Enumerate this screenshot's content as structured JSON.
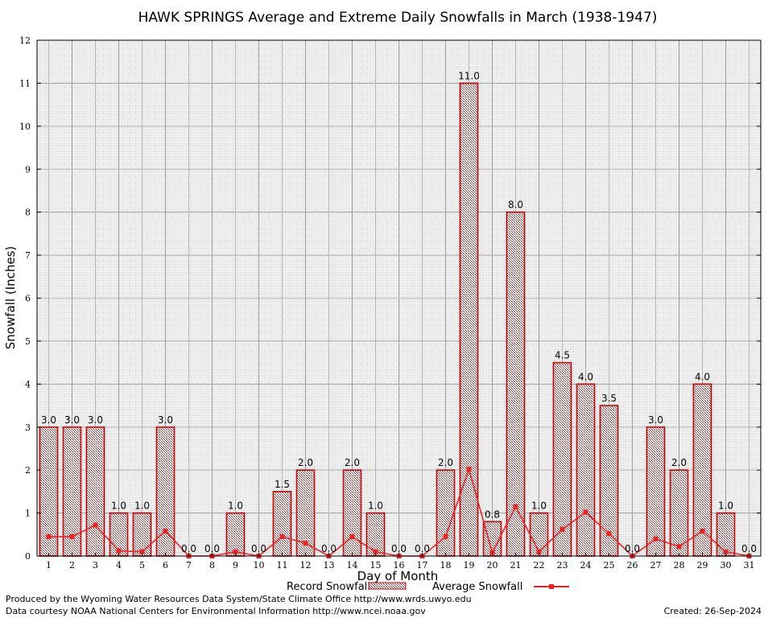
{
  "chart_data": {
    "type": "bar",
    "title": "HAWK SPRINGS Average and Extreme Daily Snowfalls in March (1938-1947)",
    "xlabel": "Day of Month",
    "ylabel": "Snowfall (Inches)",
    "ylim": [
      0,
      12
    ],
    "yticks": [
      0,
      1,
      2,
      3,
      4,
      5,
      6,
      7,
      8,
      9,
      10,
      11,
      12
    ],
    "grid": true,
    "legend_position": "bottom",
    "categories": [
      "1",
      "2",
      "3",
      "4",
      "5",
      "6",
      "7",
      "8",
      "9",
      "10",
      "11",
      "12",
      "13",
      "14",
      "15",
      "16",
      "17",
      "18",
      "19",
      "20",
      "21",
      "22",
      "23",
      "24",
      "25",
      "26",
      "27",
      "28",
      "29",
      "30",
      "31"
    ],
    "series": [
      {
        "name": "Record Snowfall",
        "kind": "bar",
        "color": "#cc0000",
        "fill": "#d8c8c0",
        "values": [
          3.0,
          3.0,
          3.0,
          1.0,
          1.0,
          3.0,
          0.0,
          0.0,
          1.0,
          0.0,
          1.5,
          2.0,
          0.0,
          2.0,
          1.0,
          0.0,
          0.0,
          2.0,
          11.0,
          0.8,
          8.0,
          1.0,
          4.5,
          4.0,
          3.5,
          0.0,
          3.0,
          2.0,
          4.0,
          1.0,
          0.0
        ],
        "labels": [
          "3.0",
          "3.0",
          "3.0",
          "1.0",
          "1.0",
          "3.0",
          "0.0",
          "0.0",
          "1.0",
          "0.0",
          "1.5",
          "2.0",
          "0.0",
          "2.0",
          "1.0",
          "0.0",
          "0.0",
          "2.0",
          "11.0",
          "0.8",
          "8.0",
          "1.0",
          "4.5",
          "4.0",
          "3.5",
          "0.0",
          "3.0",
          "2.0",
          "4.0",
          "1.0",
          "0.0"
        ]
      },
      {
        "name": "Average Snowfall",
        "kind": "line",
        "color": "#ee2222",
        "values": [
          0.45,
          0.45,
          0.72,
          0.12,
          0.1,
          0.58,
          0.0,
          0.0,
          0.1,
          0.0,
          0.45,
          0.3,
          0.0,
          0.45,
          0.1,
          0.0,
          0.0,
          0.45,
          2.02,
          0.08,
          1.15,
          0.1,
          0.62,
          1.02,
          0.52,
          0.0,
          0.4,
          0.22,
          0.58,
          0.1,
          0.0
        ]
      }
    ]
  },
  "footer": {
    "credit_line1": "Produced by the Wyoming Water Resources Data System/State Climate Office http://www.wrds.uwyo.edu",
    "credit_line2": "Data courtesy NOAA National Centers for Environmental Information http://www.ncei.noaa.gov",
    "created": "Created: 26-Sep-2024"
  }
}
